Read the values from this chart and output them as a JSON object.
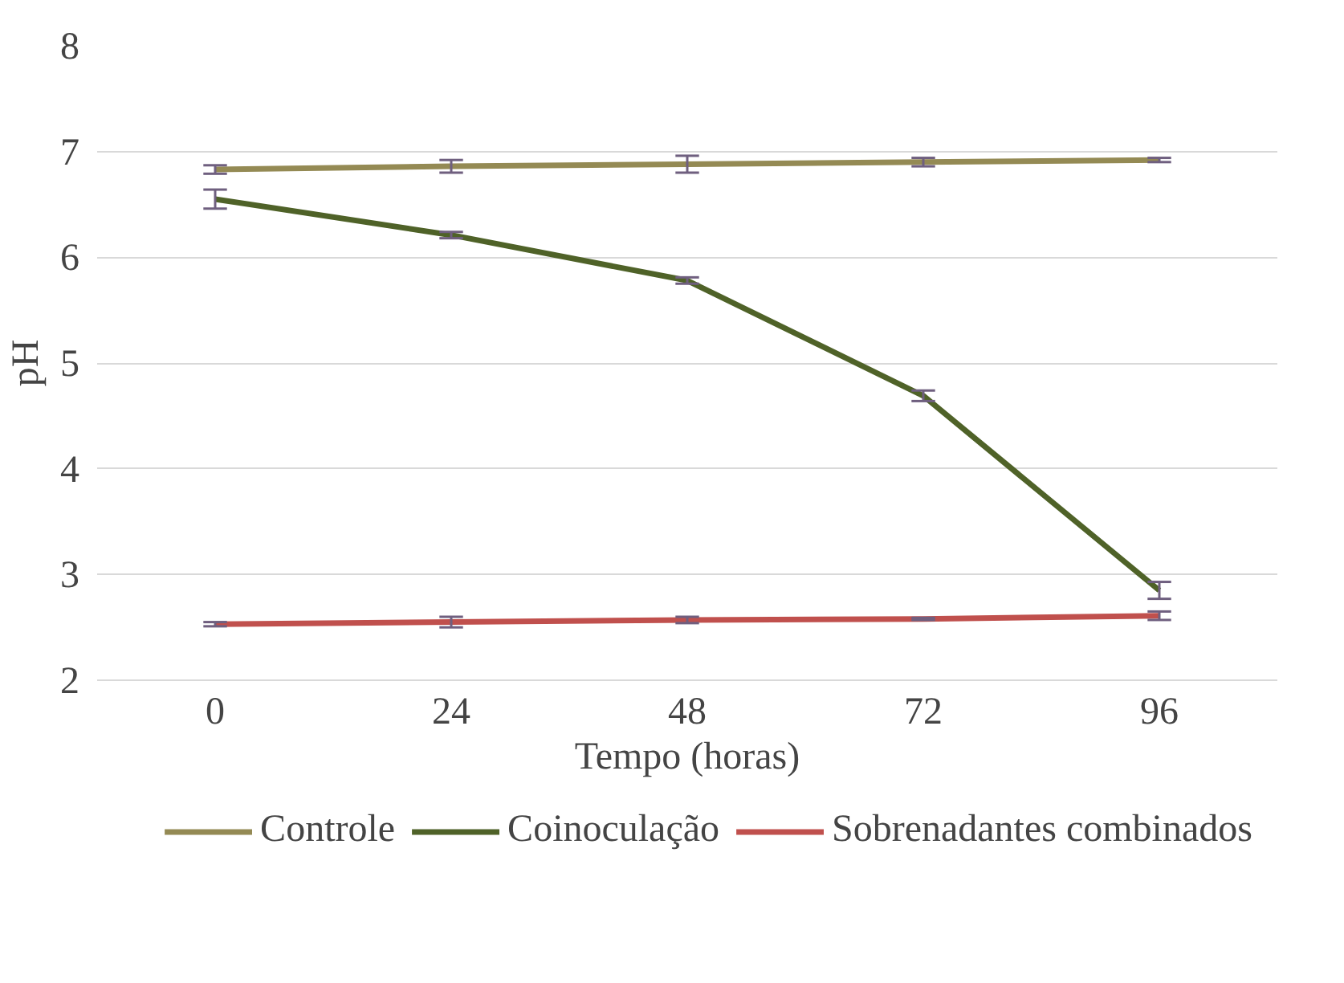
{
  "chart_data": {
    "type": "line",
    "xlabel": "Tempo (horas)",
    "ylabel": "pH",
    "categories": [
      "0",
      "24",
      "48",
      "72",
      "96"
    ],
    "ylim": [
      2,
      8
    ],
    "yticks": [
      2,
      3,
      4,
      5,
      6,
      7,
      8
    ],
    "grid": "y",
    "legend": "bottom",
    "line_style": "solid",
    "marker": "none",
    "series": [
      {
        "name": "Controle",
        "color": "#948a54",
        "values": [
          6.83,
          6.86,
          6.88,
          6.9,
          6.92
        ],
        "errors": [
          0.04,
          0.06,
          0.08,
          0.04,
          0.02
        ]
      },
      {
        "name": "Coinoculação",
        "color": "#4f6228",
        "values": [
          6.55,
          6.21,
          5.78,
          4.69,
          2.85
        ],
        "errors": [
          0.09,
          0.03,
          0.03,
          0.05,
          0.08
        ]
      },
      {
        "name": "Sobrenadantes combinados",
        "color": "#c0504d",
        "values": [
          2.53,
          2.55,
          2.57,
          2.58,
          2.61
        ],
        "errors": [
          0.02,
          0.05,
          0.03,
          0.01,
          0.04
        ]
      }
    ]
  }
}
